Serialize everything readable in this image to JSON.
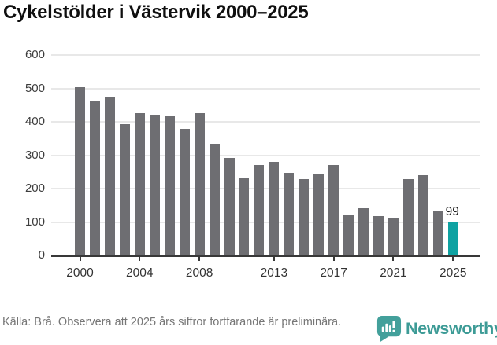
{
  "title": "Cykelstölder i Västervik 2000–2025",
  "chart_data": {
    "type": "bar",
    "title": "Cykelstölder i Västervik 2000–2025",
    "categories": [
      "2000",
      "2001",
      "2002",
      "2003",
      "2004",
      "2005",
      "2006",
      "2007",
      "2008",
      "2009",
      "2010",
      "2011",
      "2012",
      "2013",
      "2014",
      "2015",
      "2016",
      "2017",
      "2018",
      "2019",
      "2020",
      "2021",
      "2022",
      "2023",
      "2024",
      "2025"
    ],
    "values": [
      503,
      461,
      473,
      394,
      427,
      421,
      416,
      378,
      425,
      334,
      291,
      232,
      271,
      281,
      246,
      229,
      245,
      271,
      120,
      142,
      118,
      113,
      229,
      240,
      134,
      99
    ],
    "xlabel": "",
    "ylabel": "",
    "ylim": [
      0,
      600
    ],
    "yticks": [
      0,
      100,
      200,
      300,
      400,
      500,
      600
    ],
    "xtick_labels": [
      "2000",
      "2004",
      "2008",
      "2013",
      "2017",
      "2021",
      "2025"
    ],
    "xtick_indices": [
      0,
      4,
      8,
      13,
      17,
      21,
      25
    ],
    "grid": true,
    "legend": "none",
    "bar_color": "#6e6e72",
    "highlight_color": "#0ea2a2",
    "highlight_index": 25,
    "value_labels": [
      {
        "index": 25,
        "text": "99"
      }
    ]
  },
  "footer": {
    "source": "Källa: Brå. Observera att 2025 års siffror fortfarande är preliminära.",
    "brand": {
      "name": "Newsworthy",
      "icon": "newsworthy-chart-bubble-icon",
      "icon_color": "#43a09b",
      "text_color": "#3d9b96"
    }
  }
}
